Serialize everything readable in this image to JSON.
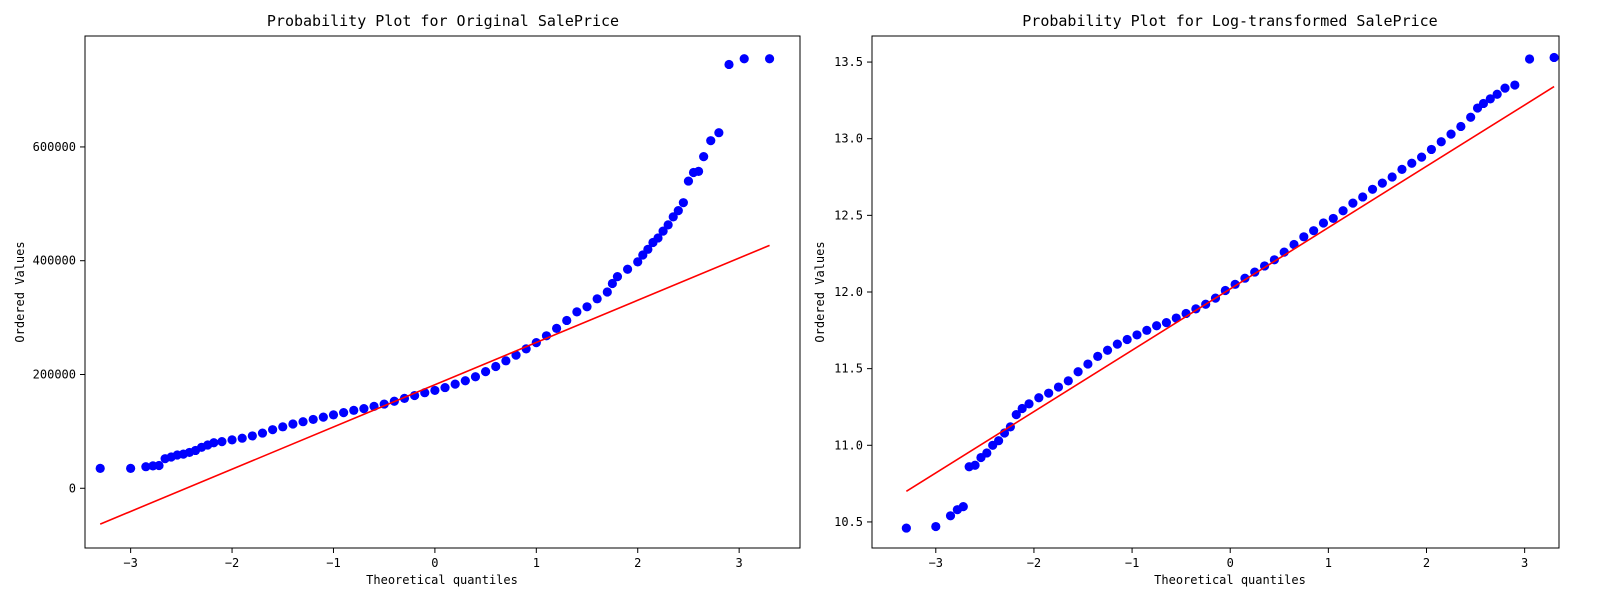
{
  "chart_data": [
    {
      "type": "scatter",
      "title": "Probability Plot for Original SalePrice",
      "xlabel": "Theoretical quantiles",
      "ylabel": "Ordered Values",
      "xlim": [
        -3.45,
        3.6
      ],
      "ylim": [
        -105000,
        795000
      ],
      "xticks": [
        -3,
        -2,
        -1,
        0,
        1,
        2,
        3
      ],
      "yticks": [
        0,
        200000,
        400000,
        600000
      ],
      "ytick_labels": [
        "0",
        "200000",
        "400000",
        "600000"
      ],
      "grid": false,
      "marker_color": "#0000ff",
      "line_color": "#ff0000",
      "fit_line": {
        "x": [
          -3.3,
          3.3
        ],
        "y": [
          -63000,
          427000
        ]
      },
      "points": {
        "x": [
          -3.3,
          -3.0,
          -2.85,
          -2.78,
          -2.72,
          -2.66,
          -2.6,
          -2.54,
          -2.48,
          -2.42,
          -2.36,
          -2.3,
          -2.24,
          -2.18,
          -2.1,
          -2.0,
          -1.9,
          -1.8,
          -1.7,
          -1.6,
          -1.5,
          -1.4,
          -1.3,
          -1.2,
          -1.1,
          -1.0,
          -0.9,
          -0.8,
          -0.7,
          -0.6,
          -0.5,
          -0.4,
          -0.3,
          -0.2,
          -0.1,
          0.0,
          0.1,
          0.2,
          0.3,
          0.4,
          0.5,
          0.6,
          0.7,
          0.8,
          0.9,
          1.0,
          1.1,
          1.2,
          1.3,
          1.4,
          1.5,
          1.6,
          1.7,
          1.75,
          1.8,
          1.9,
          2.0,
          2.05,
          2.1,
          2.15,
          2.2,
          2.25,
          2.3,
          2.35,
          2.4,
          2.45,
          2.5,
          2.55,
          2.6,
          2.65,
          2.72,
          2.8,
          2.9,
          3.05,
          3.3
        ],
        "y": [
          34900,
          35000,
          37900,
          39300,
          40000,
          52000,
          55000,
          58500,
          60000,
          63000,
          66500,
          72000,
          76000,
          80000,
          82000,
          85000,
          88000,
          92000,
          97000,
          103000,
          108000,
          113000,
          117000,
          121000,
          125000,
          129000,
          133000,
          137000,
          140000,
          144000,
          148000,
          153000,
          158000,
          163000,
          168000,
          172000,
          177000,
          183000,
          189000,
          196000,
          205000,
          214000,
          224000,
          234000,
          245000,
          256000,
          268000,
          281000,
          295000,
          310000,
          319000,
          333000,
          345000,
          360000,
          372000,
          385000,
          398000,
          410000,
          420000,
          432000,
          440000,
          452000,
          463000,
          477000,
          488000,
          502000,
          540000,
          555000,
          557000,
          583000,
          611000,
          625000,
          745000,
          755000,
          755000
        ]
      }
    },
    {
      "type": "scatter",
      "title": "Probability Plot for Log-transformed SalePrice",
      "xlabel": "Theoretical quantiles",
      "ylabel": "Ordered Values",
      "xlim": [
        -3.65,
        3.35
      ],
      "ylim": [
        10.33,
        13.67
      ],
      "xticks": [
        -3,
        -2,
        -1,
        0,
        1,
        2,
        3
      ],
      "yticks": [
        10.5,
        11.0,
        11.5,
        12.0,
        12.5,
        13.0,
        13.5
      ],
      "ytick_labels": [
        "10.5",
        "11.0",
        "11.5",
        "12.0",
        "12.5",
        "13.0",
        "13.5"
      ],
      "grid": false,
      "marker_color": "#0000ff",
      "line_color": "#ff0000",
      "fit_line": {
        "x": [
          -3.3,
          3.3
        ],
        "y": [
          10.7,
          13.34
        ]
      },
      "points": {
        "x": [
          -3.3,
          -3.0,
          -2.85,
          -2.78,
          -2.72,
          -2.66,
          -2.6,
          -2.54,
          -2.48,
          -2.42,
          -2.36,
          -2.3,
          -2.24,
          -2.18,
          -2.12,
          -2.05,
          -1.95,
          -1.85,
          -1.75,
          -1.65,
          -1.55,
          -1.45,
          -1.35,
          -1.25,
          -1.15,
          -1.05,
          -0.95,
          -0.85,
          -0.75,
          -0.65,
          -0.55,
          -0.45,
          -0.35,
          -0.25,
          -0.15,
          -0.05,
          0.05,
          0.15,
          0.25,
          0.35,
          0.45,
          0.55,
          0.65,
          0.75,
          0.85,
          0.95,
          1.05,
          1.15,
          1.25,
          1.35,
          1.45,
          1.55,
          1.65,
          1.75,
          1.85,
          1.95,
          2.05,
          2.15,
          2.25,
          2.35,
          2.45,
          2.52,
          2.58,
          2.65,
          2.72,
          2.8,
          2.9,
          3.05,
          3.3
        ],
        "y": [
          10.46,
          10.47,
          10.54,
          10.58,
          10.6,
          10.86,
          10.87,
          10.92,
          10.95,
          11.0,
          11.03,
          11.08,
          11.12,
          11.2,
          11.24,
          11.27,
          11.31,
          11.34,
          11.38,
          11.42,
          11.48,
          11.53,
          11.58,
          11.62,
          11.66,
          11.69,
          11.72,
          11.75,
          11.78,
          11.8,
          11.83,
          11.86,
          11.89,
          11.92,
          11.96,
          12.01,
          12.05,
          12.09,
          12.13,
          12.17,
          12.21,
          12.26,
          12.31,
          12.36,
          12.4,
          12.45,
          12.48,
          12.53,
          12.58,
          12.62,
          12.67,
          12.71,
          12.75,
          12.8,
          12.84,
          12.88,
          12.93,
          12.98,
          13.03,
          13.08,
          13.14,
          13.2,
          13.23,
          13.26,
          13.29,
          13.33,
          13.35,
          13.52,
          13.53
        ]
      }
    }
  ]
}
